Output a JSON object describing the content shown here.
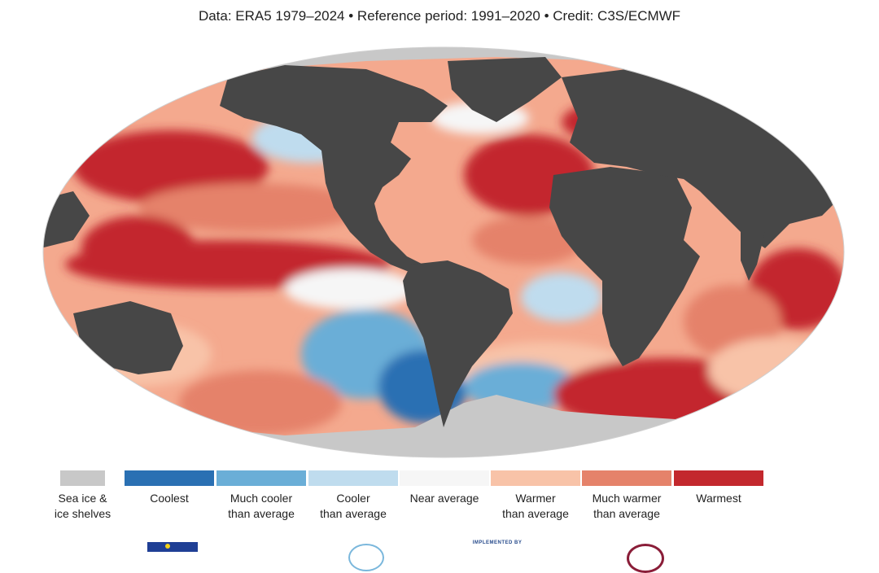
{
  "header": {
    "subtitle": "Data: ERA5 1979–2024 • Reference period: 1991–2020 • Credit: C3S/ECMWF"
  },
  "map": {
    "projection": "Robinson",
    "land_color": "#474747",
    "sea_ice_color": "#c8c8c8"
  },
  "legend": {
    "items": [
      {
        "label": "Sea ice &\nice shelves",
        "color": "#c8c8c8"
      },
      {
        "label": "Coolest",
        "color": "#2a70b3"
      },
      {
        "label": "Much cooler\nthan average",
        "color": "#6aaed7"
      },
      {
        "label": "Cooler\nthan average",
        "color": "#bfdcee"
      },
      {
        "label": "Near average",
        "color": "#f6f6f6"
      },
      {
        "label": "Warmer\nthan average",
        "color": "#f8c3a8"
      },
      {
        "label": "Much warmer\nthan average",
        "color": "#e5826a"
      },
      {
        "label": "Warmest",
        "color": "#c3282d"
      }
    ]
  },
  "footer": {
    "impl_text": "IMPLEMENTED BY"
  }
}
